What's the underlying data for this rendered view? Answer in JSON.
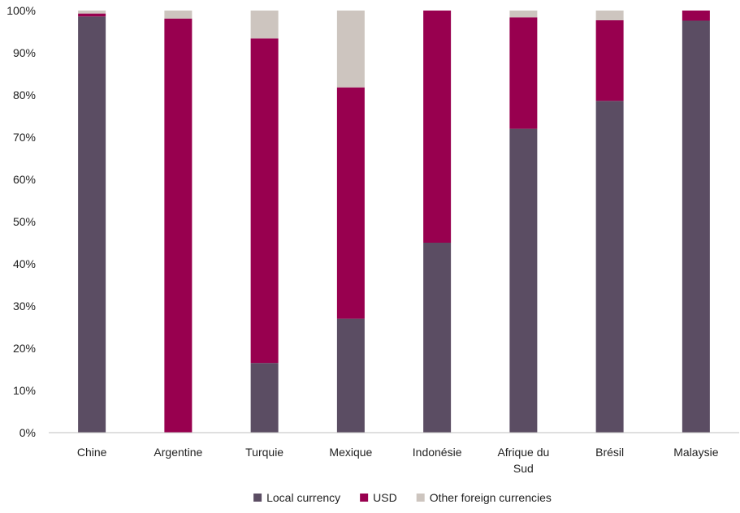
{
  "chart_data": {
    "type": "bar",
    "stacked": true,
    "title": "",
    "xlabel": "",
    "ylabel": "",
    "ylim": [
      0,
      100
    ],
    "y_ticks": [
      "0%",
      "10%",
      "20%",
      "30%",
      "40%",
      "50%",
      "60%",
      "70%",
      "80%",
      "90%",
      "100%"
    ],
    "categories": [
      [
        "Chine"
      ],
      [
        "Argentine"
      ],
      [
        "Turquie"
      ],
      [
        "Mexique"
      ],
      [
        "Indonésie"
      ],
      [
        "Afrique du",
        "Sud"
      ],
      [
        "Brésil"
      ],
      [
        "Malaysie"
      ]
    ],
    "series": [
      {
        "name": "Local currency",
        "color": "#5b4d63",
        "values": [
          98.6,
          0,
          16.5,
          27,
          45,
          72,
          78.6,
          97.6
        ]
      },
      {
        "name": "USD",
        "color": "#98004f",
        "values": [
          0.7,
          98.1,
          76.9,
          54.8,
          55,
          26.4,
          19.1,
          2.4
        ]
      },
      {
        "name": "Other foreign currencies",
        "color": "#cdc5bf",
        "values": [
          0.7,
          1.9,
          6.6,
          18.2,
          0,
          1.6,
          2.3,
          0
        ]
      }
    ],
    "grid": false,
    "legend_position": "bottom"
  }
}
